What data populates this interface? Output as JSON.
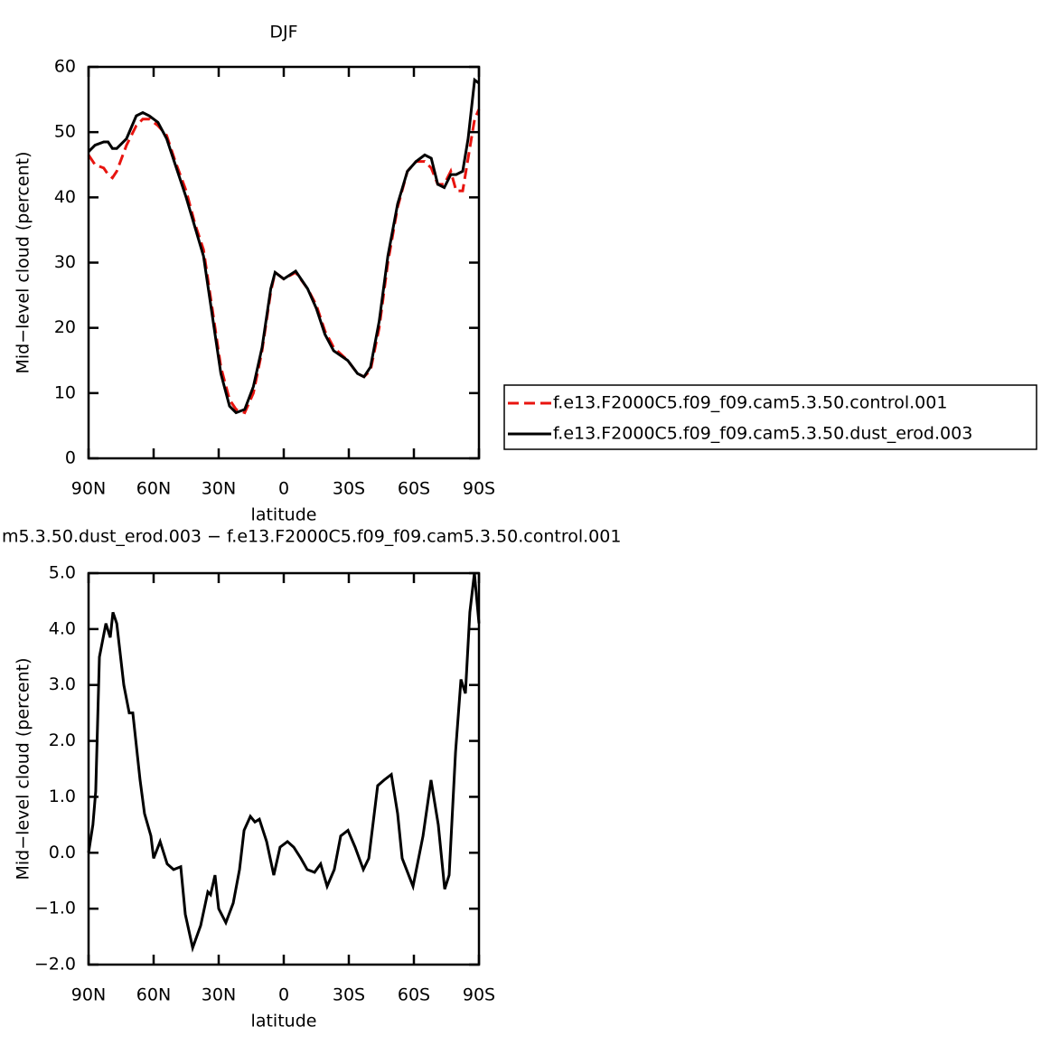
{
  "chart_data": [
    {
      "type": "line",
      "title": "DJF",
      "xlabel": "latitude",
      "ylabel": "Mid−level cloud (percent)",
      "xlim": [
        90,
        -90
      ],
      "ylim": [
        0,
        60
      ],
      "xticks": [
        {
          "value": 90,
          "label": "90N"
        },
        {
          "value": 60,
          "label": "60N"
        },
        {
          "value": 30,
          "label": "30N"
        },
        0,
        {
          "value": -30,
          "label": "30S"
        },
        {
          "value": -60,
          "label": "60S"
        },
        {
          "value": -90,
          "label": "90S"
        }
      ],
      "yticks": [
        0,
        10,
        20,
        30,
        40,
        50,
        60
      ],
      "legend": "right",
      "x": [
        90,
        87,
        83,
        81,
        79,
        77,
        72.5,
        68,
        65,
        62,
        58,
        54,
        50,
        45,
        41,
        37,
        33,
        29,
        25,
        22,
        18,
        14,
        10,
        6,
        4,
        0,
        -5.5,
        -11,
        -15,
        -19,
        -23,
        -29.5,
        -34,
        -37,
        -40,
        -44,
        -48,
        -52.5,
        -57,
        -61,
        -65,
        -68,
        -71,
        -74,
        -77,
        -79.5,
        -82.5,
        -85,
        -88,
        -90
      ],
      "series": [
        {
          "name": "f.e13.F2000C5.f09_f09.cam5.3.50.control.001",
          "color": "#e8140f",
          "line_style": "dashed",
          "values": [
            46.5,
            45,
            44.5,
            43.5,
            43,
            44,
            48,
            51,
            52,
            52,
            51,
            49.5,
            45.5,
            41,
            36,
            32,
            23,
            14,
            9,
            7.5,
            7,
            10,
            16.5,
            25.5,
            28.5,
            27.5,
            28.5,
            26,
            23.5,
            19.5,
            17,
            15,
            13,
            12.5,
            13.5,
            20,
            30,
            38.5,
            44,
            45.5,
            45.5,
            44.5,
            42,
            42,
            44,
            41,
            41,
            46,
            52,
            53.5
          ]
        },
        {
          "name": "f.e13.F2000C5.f09_f09.cam5.3.50.dust_erod.003",
          "color": "#000000",
          "line_style": "solid",
          "values": [
            47,
            48,
            48.5,
            48.5,
            47.5,
            47.5,
            49,
            52.5,
            53,
            52.5,
            51.5,
            49,
            45,
            40,
            35.5,
            31,
            22,
            13,
            8,
            7,
            7.5,
            11,
            17,
            26,
            28.5,
            27.5,
            28.7,
            26,
            23,
            19,
            16.5,
            15,
            13,
            12.5,
            14,
            21,
            31,
            39,
            44,
            45.5,
            46.5,
            46,
            42,
            41.5,
            43.5,
            43.5,
            44,
            49,
            58,
            57.5
          ]
        }
      ]
    },
    {
      "type": "line",
      "title": "m5.3.50.dust_erod.003 − f.e13.F2000C5.f09_f09.cam5.3.50.control.001",
      "xlabel": "latitude",
      "ylabel": "Mid−level cloud (percent)",
      "xlim": [
        90,
        -90
      ],
      "ylim": [
        -2,
        5
      ],
      "xticks": [
        {
          "value": 90,
          "label": "90N"
        },
        {
          "value": 60,
          "label": "60N"
        },
        {
          "value": 30,
          "label": "30N"
        },
        0,
        {
          "value": -30,
          "label": "30S"
        },
        {
          "value": -60,
          "label": "60S"
        },
        {
          "value": -90,
          "label": "90S"
        }
      ],
      "yticks": [
        {
          "value": -2,
          "label": "−2.0"
        },
        {
          "value": -1,
          "label": "−1.0"
        },
        {
          "value": 0,
          "label": "0.0"
        },
        {
          "value": 1,
          "label": "1.0"
        },
        {
          "value": 2,
          "label": "2.0"
        },
        {
          "value": 3,
          "label": "3.0"
        },
        {
          "value": 4,
          "label": "4.0"
        },
        {
          "value": 5,
          "label": "5.0"
        }
      ],
      "x": [
        90,
        88,
        86.7,
        85,
        82,
        80,
        78.75,
        77,
        73.75,
        71.25,
        69.6,
        66.25,
        64.2,
        61.25,
        60,
        57,
        53.75,
        50.8,
        47.5,
        45.4,
        42,
        38.3,
        35,
        33.75,
        31.7,
        30,
        26.7,
        23.3,
        20.4,
        18.3,
        15.4,
        13.3,
        11.25,
        7.9,
        4.6,
        1.7,
        -1.7,
        -4.6,
        -7.9,
        -10.8,
        -14.2,
        -17,
        -20,
        -23.3,
        -26.25,
        -29.6,
        -32.9,
        -36.7,
        -39.2,
        -43.3,
        -46.25,
        -49.6,
        -52.5,
        -54.6,
        -59.6,
        -64.2,
        -67.9,
        -71.25,
        -74.2,
        -76.25,
        -79.2,
        -81.7,
        -83.75,
        -85.8,
        -87.9,
        -90
      ],
      "series": [
        {
          "color": "#000000",
          "line_style": "solid",
          "values": [
            0,
            0.5,
            1.1,
            3.5,
            4.1,
            3.85,
            4.3,
            4.1,
            3.0,
            2.5,
            2.5,
            1.3,
            0.7,
            0.3,
            -0.1,
            0.2,
            -0.2,
            -0.3,
            -0.25,
            -1.1,
            -1.7,
            -1.3,
            -0.7,
            -0.75,
            -0.4,
            -1.0,
            -1.25,
            -0.9,
            -0.3,
            0.4,
            0.65,
            0.55,
            0.6,
            0.2,
            -0.4,
            0.1,
            0.2,
            0.1,
            -0.1,
            -0.3,
            -0.35,
            -0.2,
            -0.6,
            -0.3,
            0.3,
            0.4,
            0.1,
            -0.3,
            -0.1,
            1.2,
            1.3,
            1.4,
            0.7,
            -0.1,
            -0.6,
            0.3,
            1.3,
            0.5,
            -0.65,
            -0.4,
            1.8,
            3.1,
            2.85,
            4.3,
            5.0,
            4.1
          ]
        }
      ]
    }
  ]
}
